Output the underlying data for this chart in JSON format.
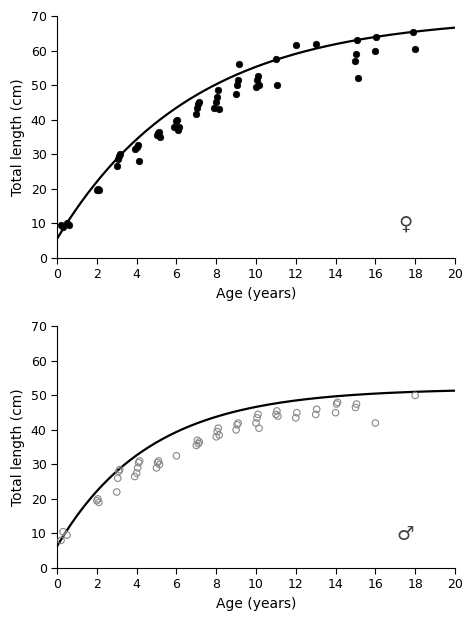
{
  "female": {
    "scatter_x": [
      0.2,
      0.3,
      0.5,
      0.6,
      2.0,
      2.05,
      2.1,
      3.0,
      3.05,
      3.1,
      3.15,
      3.9,
      4.0,
      4.05,
      4.1,
      5.0,
      5.05,
      5.1,
      5.15,
      5.9,
      6.0,
      6.05,
      6.1,
      6.15,
      7.0,
      7.05,
      7.1,
      7.15,
      7.9,
      8.0,
      8.05,
      8.1,
      8.15,
      9.0,
      9.05,
      9.1,
      9.15,
      10.0,
      10.05,
      10.1,
      10.15,
      11.0,
      11.05,
      12.0,
      13.0,
      15.0,
      15.05,
      15.1,
      15.15,
      16.0,
      16.05,
      17.9,
      18.0
    ],
    "scatter_y": [
      9.5,
      9.0,
      10.0,
      9.5,
      19.5,
      20.0,
      19.5,
      26.5,
      28.5,
      29.5,
      30.0,
      31.5,
      32.0,
      32.5,
      28.0,
      35.5,
      36.0,
      36.5,
      35.0,
      38.0,
      39.5,
      40.0,
      37.0,
      38.0,
      41.5,
      43.5,
      44.5,
      45.0,
      43.5,
      45.0,
      46.5,
      48.5,
      43.0,
      47.5,
      50.0,
      51.5,
      56.0,
      49.5,
      51.5,
      52.5,
      50.0,
      57.5,
      50.0,
      61.5,
      62.0,
      57.0,
      59.0,
      63.0,
      52.0,
      60.0,
      64.0,
      65.5,
      60.5
    ],
    "Linf": 70.0,
    "K": 0.148,
    "t0": -0.55,
    "marker_filled": true,
    "symbol": "♀",
    "symbol_x": 17.5,
    "symbol_y": 7.0
  },
  "male": {
    "scatter_x": [
      0.2,
      0.3,
      0.5,
      2.0,
      2.05,
      2.1,
      3.0,
      3.05,
      3.1,
      3.15,
      3.9,
      4.0,
      4.05,
      4.1,
      4.15,
      5.0,
      5.05,
      5.1,
      5.15,
      6.0,
      7.0,
      7.05,
      7.1,
      7.15,
      8.0,
      8.05,
      8.1,
      8.15,
      9.0,
      9.05,
      9.1,
      10.0,
      10.05,
      10.1,
      10.15,
      11.0,
      11.05,
      11.1,
      12.0,
      12.05,
      13.0,
      13.05,
      14.0,
      14.05,
      14.1,
      15.0,
      15.05,
      16.0,
      18.0
    ],
    "scatter_y": [
      8.0,
      10.5,
      9.5,
      19.5,
      20.0,
      19.0,
      22.0,
      26.0,
      28.0,
      28.5,
      26.5,
      27.5,
      29.0,
      30.5,
      31.0,
      29.0,
      30.5,
      31.0,
      30.0,
      32.5,
      35.5,
      37.0,
      36.0,
      36.5,
      38.0,
      39.5,
      40.5,
      38.5,
      40.0,
      41.5,
      42.0,
      42.0,
      43.5,
      44.5,
      40.5,
      44.5,
      45.5,
      44.0,
      43.5,
      45.0,
      44.5,
      46.0,
      45.0,
      47.5,
      48.0,
      46.5,
      47.5,
      42.0,
      50.0
    ],
    "Linf": 52.0,
    "K": 0.215,
    "t0": -0.6,
    "marker_filled": false,
    "symbol": "♂",
    "symbol_x": 17.5,
    "symbol_y": 7.0
  },
  "xlim": [
    0,
    20
  ],
  "ylim": [
    0,
    70
  ],
  "xticks": [
    0,
    2,
    4,
    6,
    8,
    10,
    12,
    14,
    16,
    18,
    20
  ],
  "yticks": [
    0,
    10,
    20,
    30,
    40,
    50,
    60,
    70
  ],
  "xlabel": "Age (years)",
  "ylabel": "Total length (cm)",
  "line_color": "#000000",
  "line_width": 1.6,
  "bg_color": "#ffffff",
  "female_marker_size": 22,
  "male_marker_size": 22,
  "female_marker_color": "#000000",
  "male_marker_edgecolor": "#888888",
  "symbol_fontsize": 14
}
